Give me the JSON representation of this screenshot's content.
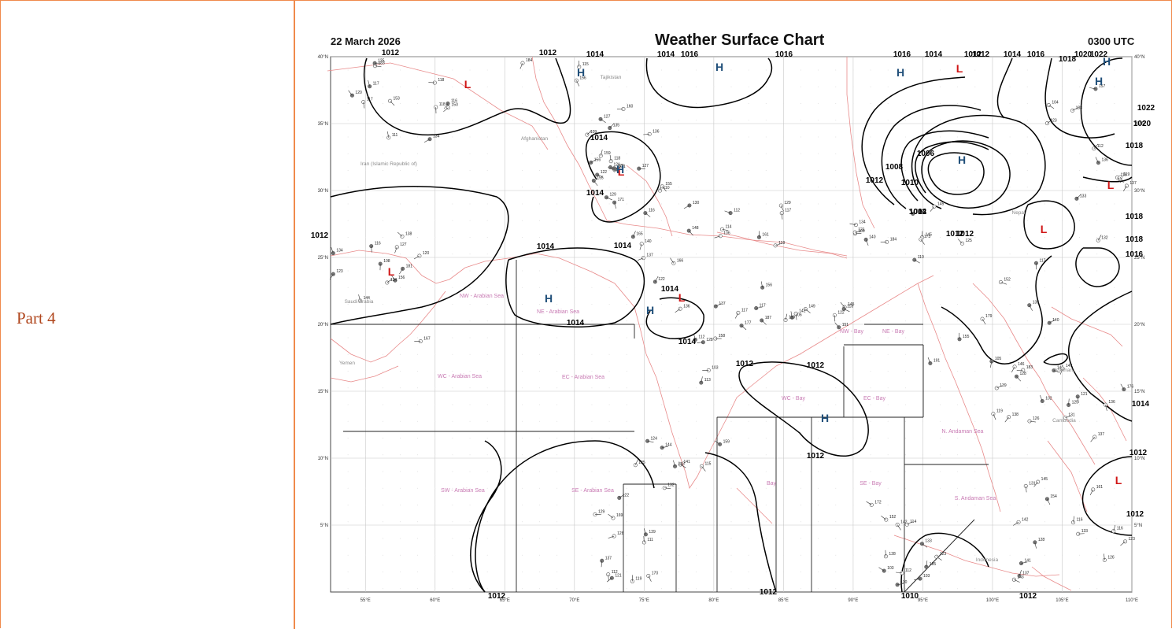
{
  "part_label": "Part 4",
  "chart": {
    "title": "Weather Surface Chart",
    "date": "22 March 2026",
    "time": "0300 UTC",
    "colors": {
      "isobar": "#000000",
      "border": "#e88a8a",
      "high": "#1f4e79",
      "low": "#d01515",
      "region_label": "#c87ab3",
      "grid": "#c8c8c8"
    },
    "longitude_labels": [
      "55°E",
      "60°E",
      "65°E",
      "70°E",
      "75°E",
      "80°E",
      "85°E",
      "90°E",
      "95°E",
      "100°E",
      "105°E",
      "110°E"
    ],
    "latitude_labels": [
      "40°N",
      "35°N",
      "30°N",
      "25°N",
      "20°N",
      "15°N",
      "10°N",
      "5°N"
    ],
    "country_labels": [
      "Afghanistan",
      "Tajikistan",
      "Iran (Islamic Republic of)",
      "Nepal",
      "Saudi Arabia",
      "Yemen",
      "Cambodia",
      "Vietnam",
      "Indonesia"
    ],
    "sea_regions": [
      "NW - Arabian Sea",
      "NE - Arabian Sea",
      "WC - Arabian Sea",
      "EC - Arabian Sea",
      "SW - Arabian Sea",
      "SE - Arabian Sea",
      "NW - Bay",
      "NE - Bay",
      "WC - Bay",
      "EC - Bay",
      "SE - Bay",
      "Bay",
      "N. Andaman Sea",
      "S. Andaman Sea"
    ],
    "pressure_centers": [
      {
        "type": "L",
        "label": "L"
      },
      {
        "type": "H",
        "label": "H"
      },
      {
        "type": "H",
        "label": "H"
      },
      {
        "type": "L",
        "label": "L"
      },
      {
        "type": "H",
        "label": "H"
      },
      {
        "type": "H",
        "label": "H"
      },
      {
        "type": "L",
        "label": "L"
      },
      {
        "type": "H",
        "label": "H"
      },
      {
        "type": "H",
        "label": "H"
      },
      {
        "type": "L",
        "label": "L"
      },
      {
        "type": "H",
        "label": "H"
      },
      {
        "type": "H",
        "label": "H"
      },
      {
        "type": "H",
        "label": "H"
      },
      {
        "type": "L",
        "label": "L"
      },
      {
        "type": "L",
        "label": "L"
      },
      {
        "type": "H",
        "label": "H"
      },
      {
        "type": "L",
        "label": "L"
      },
      {
        "type": "L",
        "label": "L"
      }
    ],
    "isobar_labels": [
      "1012",
      "1012",
      "1014",
      "1014",
      "1016",
      "1016",
      "1016",
      "1014",
      "1012",
      "1014",
      "1012",
      "1016",
      "1018",
      "1020",
      "1022",
      "1022",
      "1020",
      "1018",
      "1018",
      "1018",
      "1016",
      "1014",
      "1012",
      "1012",
      "1012",
      "1014",
      "1014",
      "1014",
      "1014",
      "1014",
      "1014",
      "1014",
      "1012",
      "1012",
      "1012",
      "1012",
      "1012",
      "1010",
      "1012",
      "1004",
      "1006",
      "1008",
      "1010",
      "1012",
      "1012",
      "1012",
      "1012"
    ],
    "station_values": [
      "118",
      "109",
      "110",
      "117",
      "128",
      "117",
      "140",
      "105",
      "131",
      "116",
      "114",
      "112",
      "156",
      "104",
      "120",
      "160",
      "137",
      "148",
      "144",
      "151",
      "145",
      "155",
      "145",
      "133",
      "103",
      "137",
      "134",
      "132",
      "133",
      "155",
      "136",
      "140",
      "158",
      "149",
      "145",
      "139",
      "137",
      "143",
      "152",
      "122",
      "124",
      "136",
      "134",
      "156",
      "122",
      "112",
      "113",
      "106",
      "109",
      "135",
      "126",
      "123",
      "128",
      "121",
      "120",
      "119",
      "118",
      "115",
      "116",
      "114",
      "124",
      "142",
      "125",
      "131",
      "136",
      "141",
      "142",
      "139",
      "144",
      "137",
      "150",
      "126",
      "155",
      "137",
      "141",
      "122",
      "121",
      "145",
      "147",
      "128",
      "123",
      "129",
      "127",
      "133",
      "125",
      "121",
      "122",
      "118",
      "112",
      "117",
      "134",
      "138",
      "146",
      "142",
      "112",
      "111",
      "108",
      "112",
      "117",
      "118",
      "129",
      "106",
      "103",
      "119",
      "110",
      "121",
      "102",
      "116",
      "103",
      "128",
      "116",
      "117",
      "111",
      "127",
      "135",
      "129",
      "132",
      "187",
      "184",
      "191",
      "176",
      "161",
      "185",
      "170",
      "181",
      "188",
      "184",
      "171",
      "165",
      "161",
      "159",
      "177",
      "173",
      "179",
      "183",
      "154",
      "172",
      "169",
      "167",
      "157",
      "153",
      "159",
      "166",
      "156",
      "143",
      "145",
      "152",
      "140",
      "128",
      "137",
      "133",
      "125",
      "138",
      "123",
      "116",
      "156",
      "127",
      "136",
      "115",
      "118",
      "120",
      "119",
      "125",
      "126",
      "130",
      "119",
      "123",
      "116",
      "117",
      "121",
      "130"
    ]
  }
}
